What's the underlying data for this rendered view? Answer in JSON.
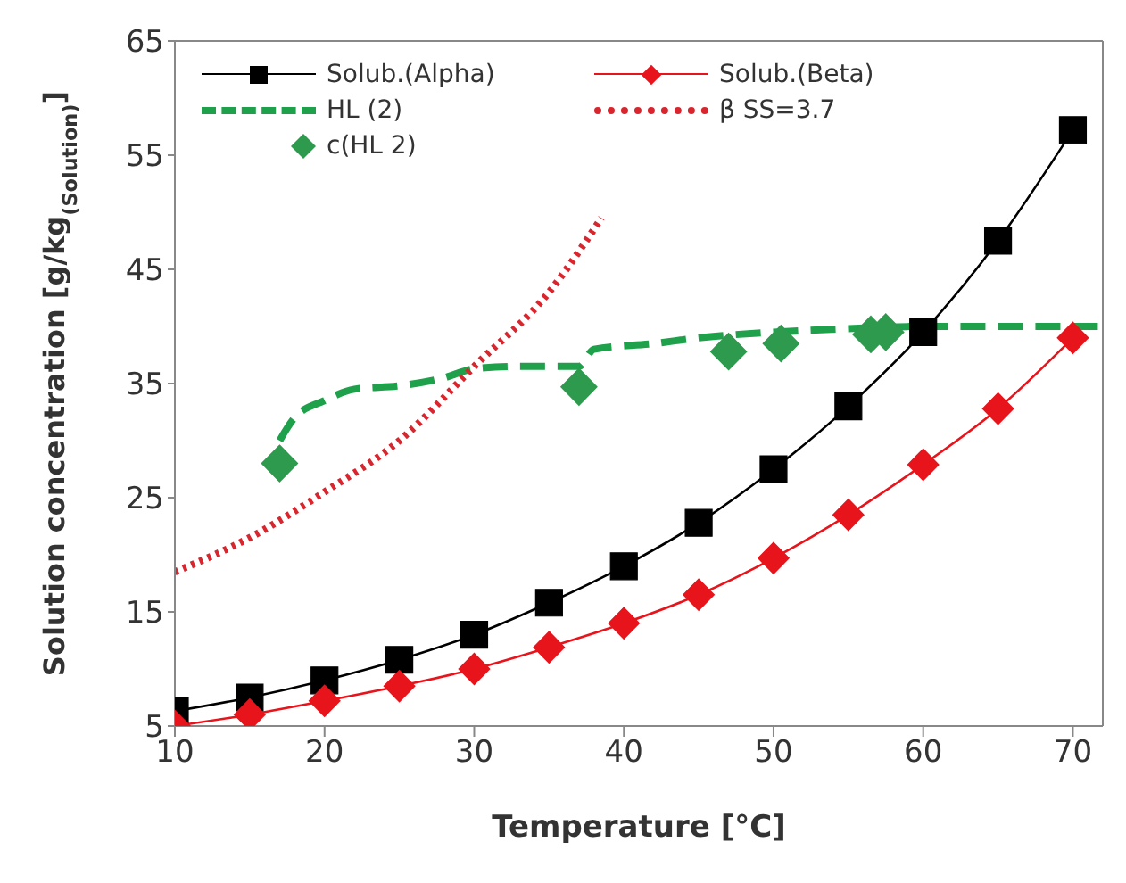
{
  "chart_data": {
    "type": "line",
    "xlabel": "Temperature [°C]",
    "ylabel": "Solution concentration  [g/kg$_{(Solution)}$]",
    "xlim": [
      10,
      72
    ],
    "ylim": [
      5,
      65
    ],
    "xticks": [
      10,
      20,
      30,
      40,
      50,
      60,
      70
    ],
    "yticks": [
      5,
      15,
      25,
      35,
      45,
      55,
      65
    ],
    "grid": false,
    "legend": "top left",
    "series": [
      {
        "name": "Solub.(Alpha)",
        "color": "#000000",
        "marker": "square",
        "line_style": "solid",
        "x": [
          10,
          15,
          20,
          25,
          30,
          35,
          40,
          45,
          50,
          55,
          60,
          65,
          70
        ],
        "values": [
          6.3,
          7.5,
          9.0,
          10.8,
          13.0,
          15.8,
          19.0,
          22.8,
          27.5,
          33.0,
          39.5,
          47.5,
          57.2
        ]
      },
      {
        "name": "Solub.(Beta)",
        "color": "#e8141c",
        "marker": "diamond",
        "line_style": "solid",
        "x": [
          10,
          15,
          20,
          25,
          30,
          35,
          40,
          45,
          50,
          55,
          60,
          65,
          70
        ],
        "values": [
          5.0,
          6.0,
          7.2,
          8.5,
          10.0,
          11.9,
          14.0,
          16.5,
          19.7,
          23.5,
          27.9,
          32.8,
          39.0
        ]
      },
      {
        "name": "HL (2)",
        "color": "#1fa04a",
        "marker": "none",
        "line_style": "dashed",
        "x": [
          17,
          18,
          20,
          22,
          25,
          28,
          30,
          33,
          37,
          38,
          42,
          45,
          50,
          55,
          60,
          72
        ],
        "values": [
          30,
          32,
          33.5,
          34.5,
          34.8,
          35.5,
          36.3,
          36.5,
          36.5,
          38,
          38.5,
          39,
          39.5,
          39.8,
          40,
          40
        ]
      },
      {
        "name": "β SS=3.7",
        "color": "#d9262e",
        "marker": "none",
        "line_style": "dotted",
        "x": [
          10,
          15,
          20,
          25,
          30,
          35,
          38.5
        ],
        "values": [
          18.5,
          21.5,
          25.5,
          30,
          36.5,
          43,
          49.5
        ]
      },
      {
        "name": "c(HL 2)",
        "type": "scatter",
        "color": "#2e9a4e",
        "marker": "diamond",
        "x": [
          17,
          37,
          47,
          50.5,
          56.5,
          57.5
        ],
        "values": [
          28,
          34.7,
          37.8,
          38.5,
          39.3,
          39.5
        ]
      }
    ]
  }
}
